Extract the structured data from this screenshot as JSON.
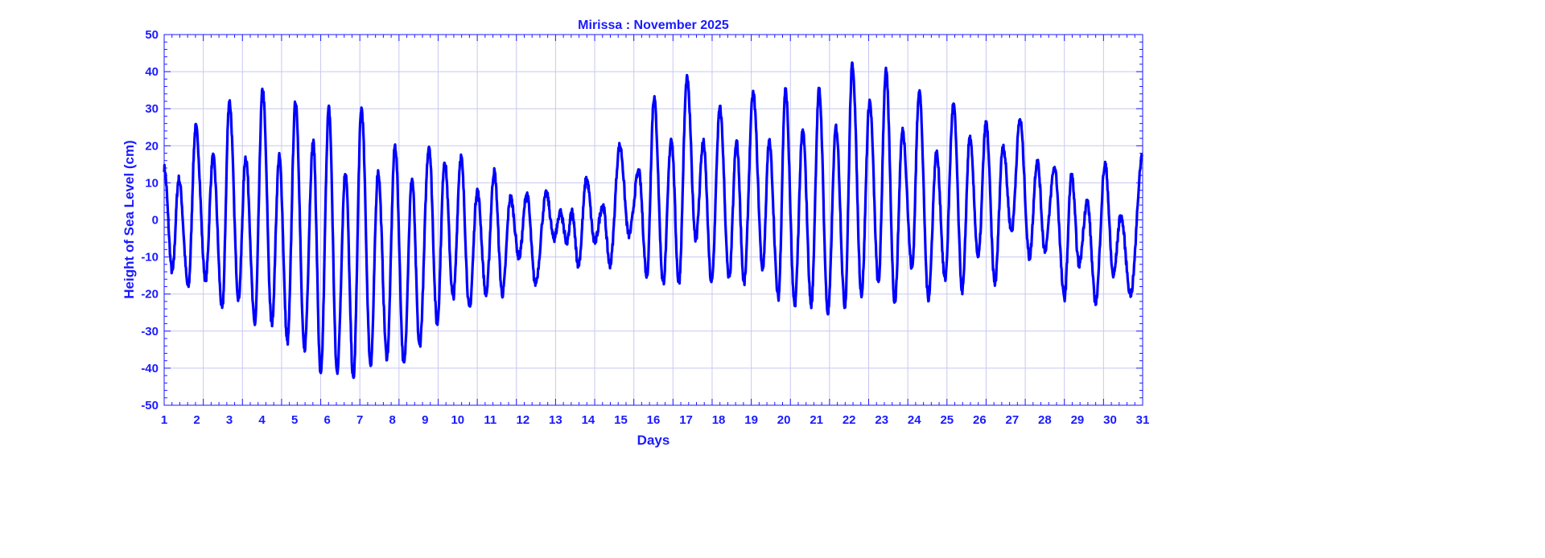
{
  "chart_data": {
    "type": "line",
    "title": "Mirissa : November 2025",
    "xlabel": "Days",
    "ylabel": "Height of Sea Level (cm)",
    "xlim": [
      1,
      31
    ],
    "ylim": [
      -50,
      50
    ],
    "xticks": [
      1,
      2,
      3,
      4,
      5,
      6,
      7,
      8,
      9,
      10,
      11,
      12,
      13,
      14,
      15,
      16,
      17,
      18,
      19,
      20,
      21,
      22,
      23,
      24,
      25,
      26,
      27,
      28,
      29,
      30,
      31
    ],
    "yticks": [
      -50,
      -40,
      -30,
      -20,
      -10,
      0,
      10,
      20,
      30,
      40,
      50
    ],
    "grid": true,
    "line_color": "#0000ff",
    "text_color": "#1a1aff",
    "grid_color": "#c8c8f0",
    "series": [
      {
        "name": "Sea level",
        "extrema": [
          [
            1.0,
            14
          ],
          [
            1.25,
            -14
          ],
          [
            1.45,
            11
          ],
          [
            1.74,
            -18
          ],
          [
            1.97,
            25
          ],
          [
            2.27,
            -16
          ],
          [
            2.5,
            17
          ],
          [
            2.78,
            -24
          ],
          [
            3.0,
            32
          ],
          [
            3.28,
            -21
          ],
          [
            3.5,
            17
          ],
          [
            3.78,
            -28
          ],
          [
            4.02,
            35
          ],
          [
            4.3,
            -28
          ],
          [
            4.53,
            17
          ],
          [
            4.78,
            -33
          ],
          [
            5.03,
            32
          ],
          [
            5.3,
            -35
          ],
          [
            5.57,
            21
          ],
          [
            5.8,
            -42
          ],
          [
            6.05,
            30
          ],
          [
            6.3,
            -41
          ],
          [
            6.56,
            13
          ],
          [
            6.8,
            -43
          ],
          [
            7.05,
            30
          ],
          [
            7.33,
            -39
          ],
          [
            7.56,
            13
          ],
          [
            7.83,
            -37
          ],
          [
            8.08,
            20
          ],
          [
            8.35,
            -39
          ],
          [
            8.6,
            11
          ],
          [
            8.83,
            -34
          ],
          [
            9.12,
            20
          ],
          [
            9.37,
            -28
          ],
          [
            9.6,
            16
          ],
          [
            9.86,
            -21
          ],
          [
            10.1,
            17
          ],
          [
            10.36,
            -24
          ],
          [
            10.6,
            8
          ],
          [
            10.87,
            -20
          ],
          [
            11.12,
            13
          ],
          [
            11.37,
            -20
          ],
          [
            11.62,
            6
          ],
          [
            11.88,
            -10
          ],
          [
            12.12,
            7
          ],
          [
            12.38,
            -17
          ],
          [
            12.72,
            7
          ],
          [
            12.95,
            -5
          ],
          [
            13.15,
            2
          ],
          [
            13.35,
            -6
          ],
          [
            13.5,
            2
          ],
          [
            13.7,
            -12
          ],
          [
            13.95,
            11
          ],
          [
            14.2,
            -6
          ],
          [
            14.45,
            4
          ],
          [
            14.67,
            -12
          ],
          [
            14.97,
            20
          ],
          [
            15.25,
            -4
          ],
          [
            15.55,
            13
          ],
          [
            15.8,
            -15
          ],
          [
            16.02,
            33
          ],
          [
            16.3,
            -17
          ],
          [
            16.55,
            22
          ],
          [
            16.78,
            -17
          ],
          [
            17.03,
            38
          ],
          [
            17.3,
            -5
          ],
          [
            17.53,
            21
          ],
          [
            17.78,
            -17
          ],
          [
            18.04,
            30
          ],
          [
            18.32,
            -16
          ],
          [
            18.55,
            21
          ],
          [
            18.78,
            -17
          ],
          [
            19.06,
            34
          ],
          [
            19.35,
            -13
          ],
          [
            19.55,
            21
          ],
          [
            19.83,
            -21
          ],
          [
            20.05,
            35
          ],
          [
            20.33,
            -23
          ],
          [
            20.58,
            24
          ],
          [
            20.84,
            -23
          ],
          [
            21.08,
            35
          ],
          [
            21.35,
            -25
          ],
          [
            21.6,
            25
          ],
          [
            21.87,
            -23
          ],
          [
            22.1,
            42
          ],
          [
            22.38,
            -20
          ],
          [
            22.63,
            32
          ],
          [
            22.9,
            -17
          ],
          [
            23.13,
            40
          ],
          [
            23.4,
            -22
          ],
          [
            23.64,
            24
          ],
          [
            23.93,
            -13
          ],
          [
            24.15,
            35
          ],
          [
            24.43,
            -21
          ],
          [
            24.68,
            18
          ],
          [
            24.94,
            -16
          ],
          [
            25.2,
            31
          ],
          [
            25.47,
            -19
          ],
          [
            25.7,
            22
          ],
          [
            25.96,
            -10
          ],
          [
            26.2,
            26
          ],
          [
            26.47,
            -17
          ],
          [
            26.72,
            20
          ],
          [
            26.98,
            -3
          ],
          [
            27.24,
            27
          ],
          [
            27.53,
            -10
          ],
          [
            27.77,
            16
          ],
          [
            28.0,
            -8
          ],
          [
            28.3,
            14
          ],
          [
            28.6,
            -21
          ],
          [
            28.82,
            12
          ],
          [
            29.05,
            -12
          ],
          [
            29.3,
            5
          ],
          [
            29.56,
            -22
          ],
          [
            29.85,
            15
          ],
          [
            30.1,
            -15
          ],
          [
            30.33,
            1
          ],
          [
            30.63,
            -20
          ],
          [
            31.0,
            18
          ]
        ]
      }
    ]
  }
}
